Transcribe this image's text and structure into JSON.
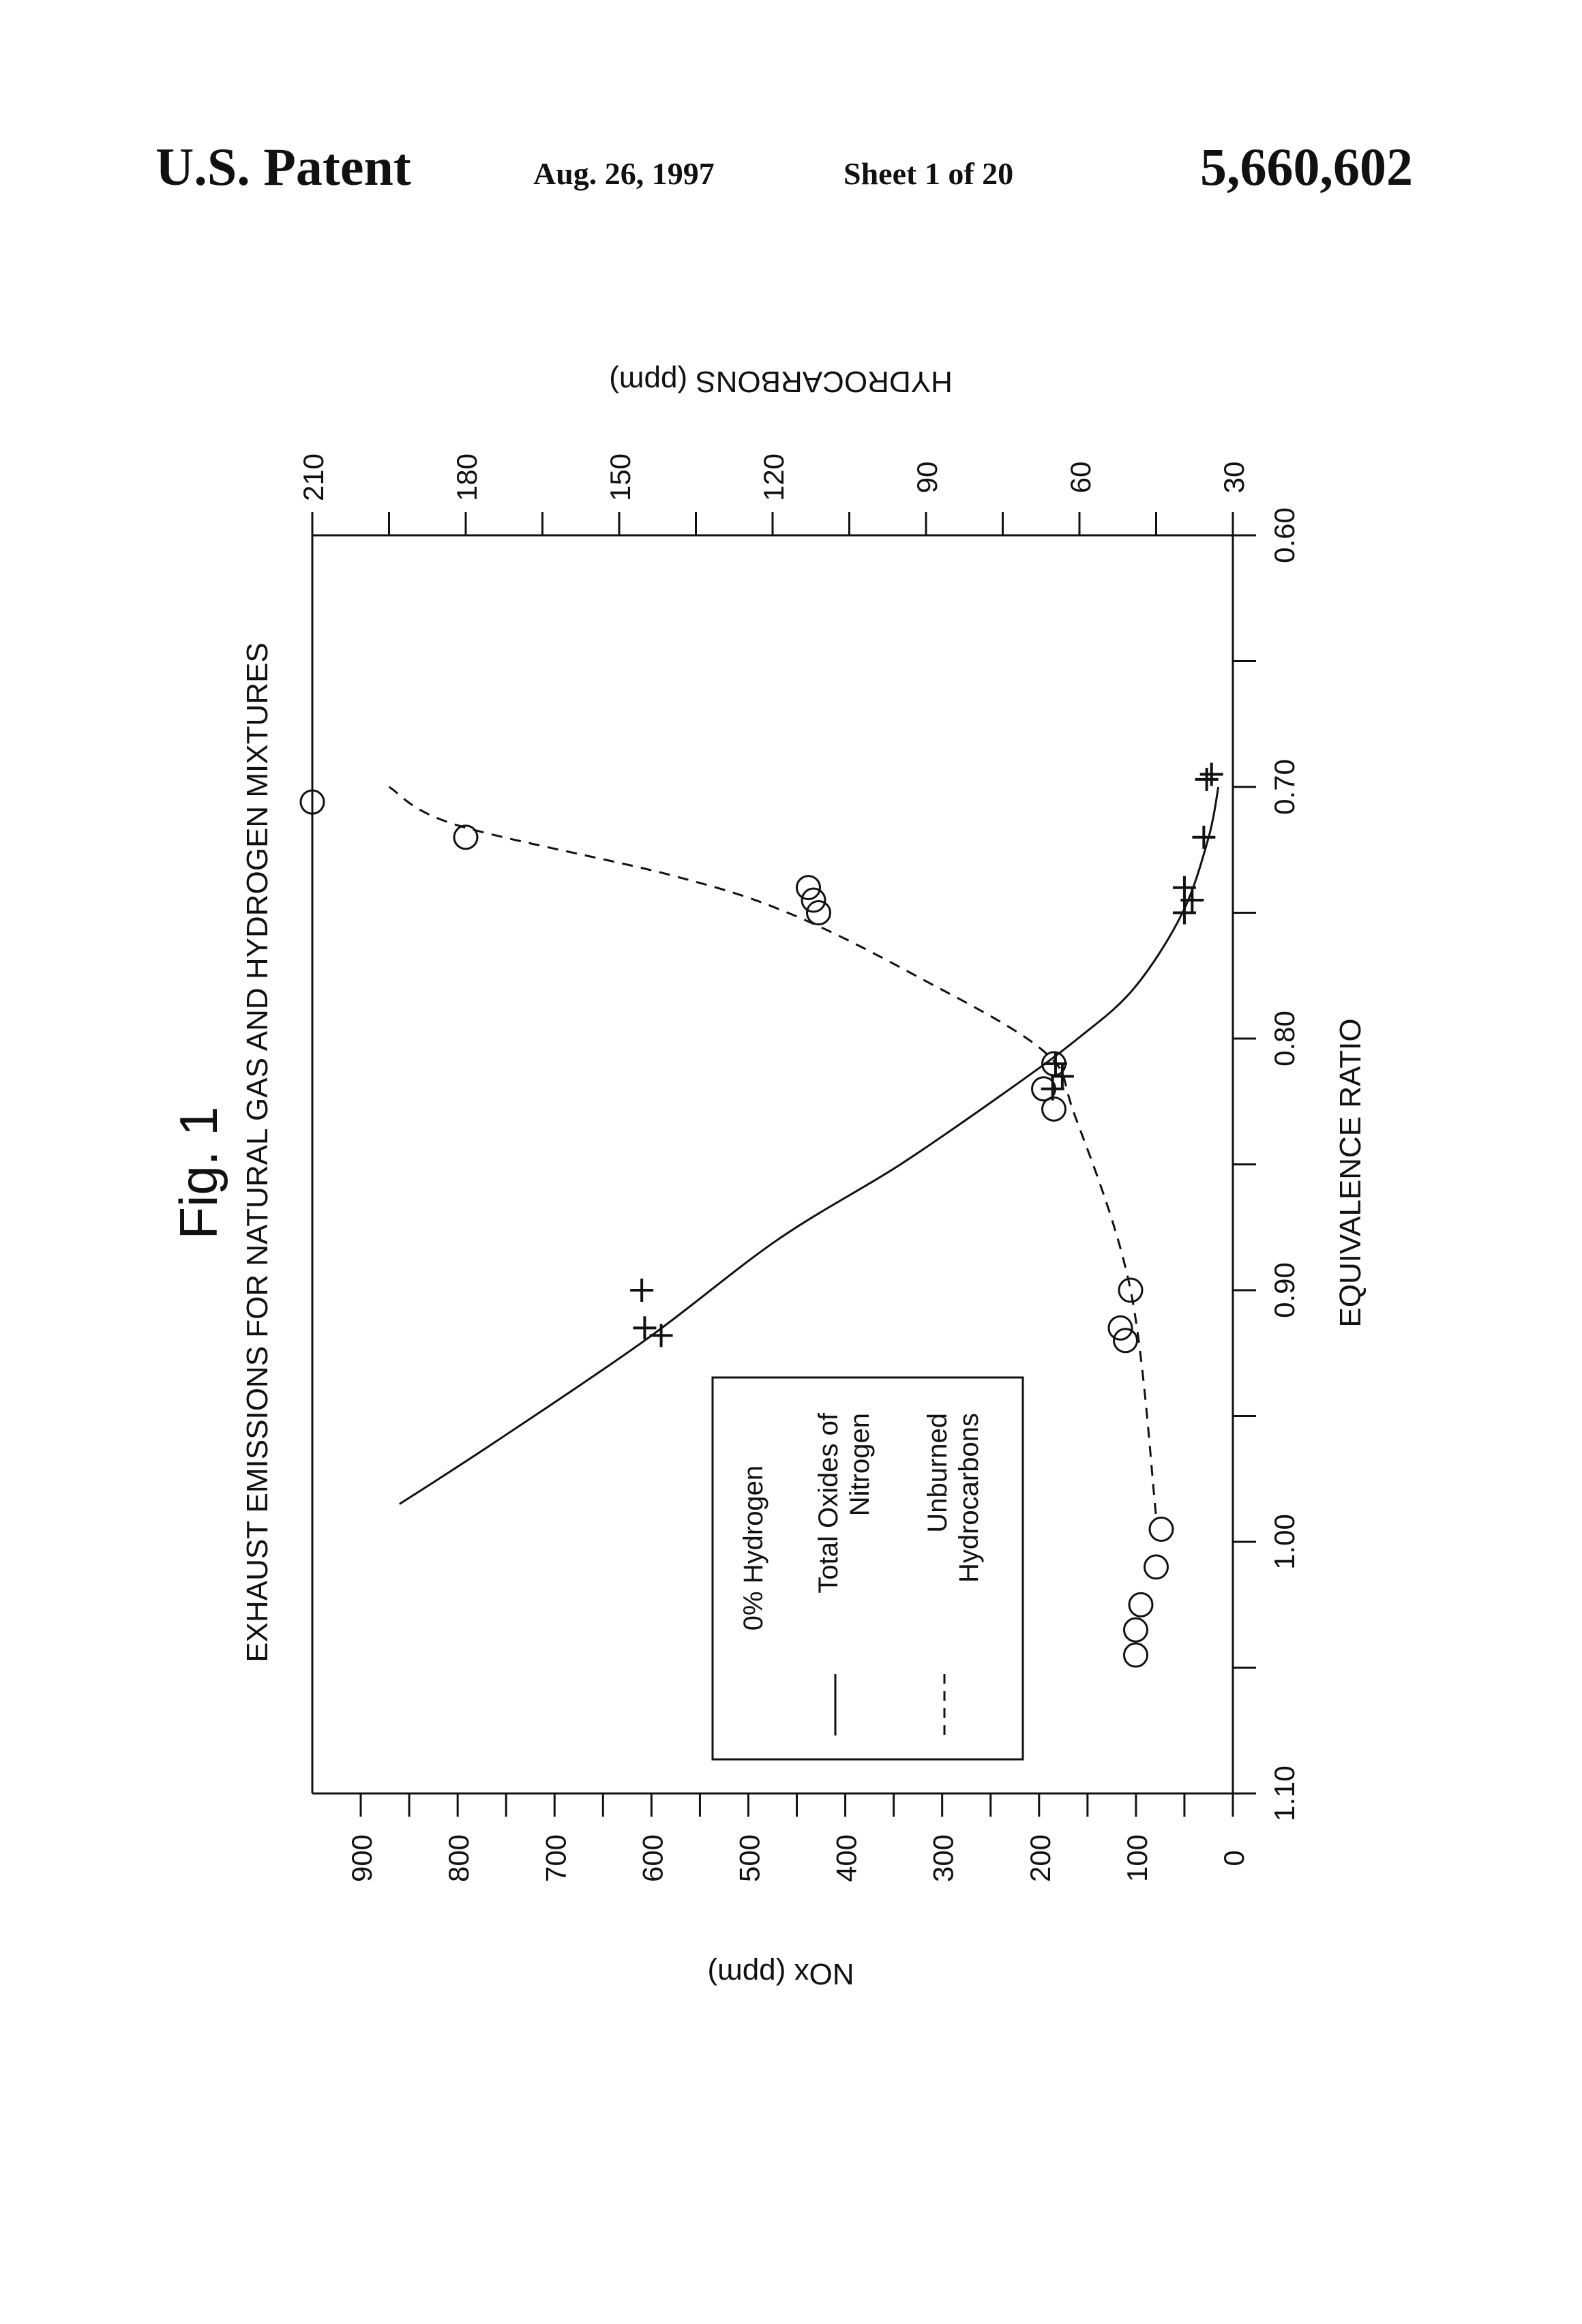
{
  "header": {
    "left": "U.S. Patent",
    "date": "Aug. 26, 1997",
    "sheet": "Sheet 1 of 20",
    "patent_number": "5,660,602"
  },
  "figure_label": "Fig. 1",
  "chart_data": {
    "type": "scatter",
    "title": "EXHAUST EMISSIONS FOR NATURAL GAS AND HYDROGEN MIXTURES",
    "xlabel": "EQUIVALENCE RATIO",
    "ylabel_left": "NOx (ppm)",
    "ylabel_right": "HYDROCARBONS (ppm)",
    "xlim": [
      0.6,
      1.1
    ],
    "ylim_left": [
      0,
      950
    ],
    "ylim_right": [
      30,
      210
    ],
    "x_ticks": [
      0.6,
      0.65,
      0.7,
      0.75,
      0.8,
      0.85,
      0.9,
      0.95,
      1.0,
      1.05,
      1.1
    ],
    "x_tick_labels": [
      "0.60",
      "0.70",
      "0.80",
      "0.90",
      "1.00",
      "1.10"
    ],
    "y_left_ticks": [
      0,
      50,
      100,
      150,
      200,
      250,
      300,
      350,
      400,
      450,
      500,
      550,
      600,
      650,
      700,
      750,
      800,
      850,
      900
    ],
    "y_left_tick_labels": [
      "0",
      "100",
      "200",
      "300",
      "400",
      "500",
      "600",
      "700",
      "800",
      "900"
    ],
    "y_right_ticks": [
      30,
      45,
      60,
      75,
      90,
      105,
      120,
      135,
      150,
      165,
      180,
      195,
      210
    ],
    "y_right_tick_labels": [
      "30",
      "60",
      "90",
      "120",
      "150",
      "180",
      "210"
    ],
    "legend": {
      "title": "0% Hydrogen",
      "entries": [
        {
          "style": "solid",
          "label_lines": [
            "Total Oxides of",
            "Nitrogen"
          ]
        },
        {
          "style": "dashed",
          "label_lines": [
            "Unburned",
            "Hydrocarbons"
          ]
        }
      ]
    },
    "series": [
      {
        "name": "Total Oxides of Nitrogen",
        "axis": "left",
        "marker": "plus",
        "curve": "solid",
        "points": [
          [
            0.695,
            22
          ],
          [
            0.697,
            27
          ],
          [
            0.72,
            30
          ],
          [
            0.745,
            42
          ],
          [
            0.74,
            50
          ],
          [
            0.75,
            50
          ],
          [
            0.81,
            183
          ],
          [
            0.815,
            176
          ],
          [
            0.82,
            186
          ],
          [
            0.9,
            610
          ],
          [
            0.915,
            607
          ],
          [
            0.918,
            590
          ]
        ],
        "fit": [
          [
            0.7,
            15
          ],
          [
            0.72,
            25
          ],
          [
            0.75,
            52
          ],
          [
            0.78,
            102
          ],
          [
            0.8,
            160
          ],
          [
            0.82,
            230
          ],
          [
            0.85,
            343
          ],
          [
            0.88,
            470
          ],
          [
            0.92,
            607
          ],
          [
            0.96,
            760
          ],
          [
            0.985,
            860
          ]
        ]
      },
      {
        "name": "Unburned Hydrocarbons",
        "axis": "right",
        "marker": "circle",
        "curve": "dashed",
        "points": [
          [
            0.706,
            210
          ],
          [
            0.72,
            180
          ],
          [
            0.74,
            113
          ],
          [
            0.745,
            112
          ],
          [
            0.75,
            111
          ],
          [
            0.81,
            65
          ],
          [
            0.82,
            67
          ],
          [
            0.828,
            65
          ],
          [
            0.9,
            50
          ],
          [
            0.915,
            52
          ],
          [
            0.92,
            51
          ],
          [
            0.995,
            44
          ],
          [
            1.01,
            45
          ],
          [
            1.025,
            48
          ],
          [
            1.035,
            49
          ],
          [
            1.045,
            49
          ]
        ],
        "fit": [
          [
            0.7,
            195
          ],
          [
            0.715,
            182
          ],
          [
            0.735,
            140
          ],
          [
            0.75,
            117
          ],
          [
            0.775,
            92
          ],
          [
            0.805,
            67
          ],
          [
            0.83,
            61
          ],
          [
            0.9,
            50
          ],
          [
            0.99,
            45
          ]
        ]
      }
    ]
  }
}
